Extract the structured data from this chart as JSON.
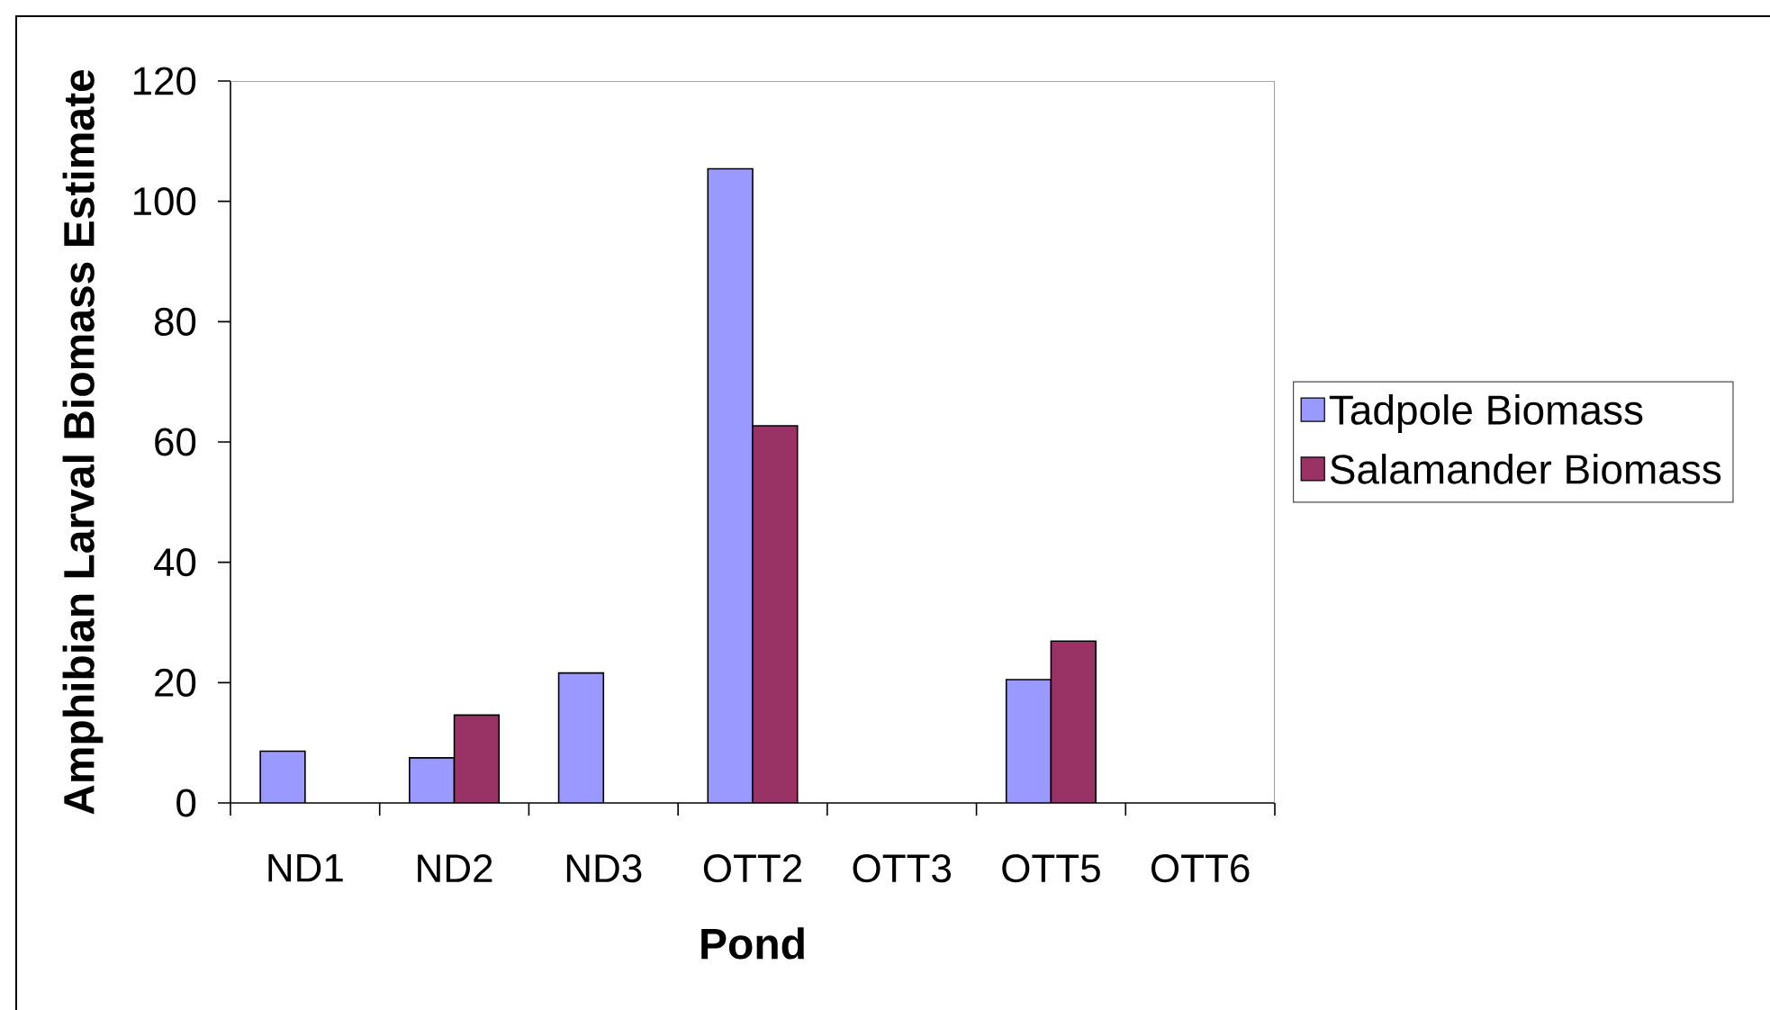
{
  "chart_data": {
    "type": "bar",
    "xlabel": "Pond",
    "ylabel": "Amphibian Larval Biomass Estimate",
    "categories": [
      "ND1",
      "ND2",
      "ND3",
      "OTT2",
      "OTT3",
      "OTT5",
      "OTT6"
    ],
    "series": [
      {
        "name": "Tadpole Biomass",
        "color": "#9999ff",
        "values": [
          8.6,
          7.5,
          21.6,
          105.4,
          null,
          20.5,
          null
        ]
      },
      {
        "name": "Salamander Biomass",
        "color": "#993366",
        "values": [
          null,
          14.6,
          null,
          62.7,
          null,
          26.9,
          null
        ]
      }
    ],
    "ylim": [
      0,
      120
    ],
    "yticks": [
      0,
      20,
      40,
      60,
      80,
      100,
      120
    ],
    "grid": false,
    "legend": "right"
  }
}
